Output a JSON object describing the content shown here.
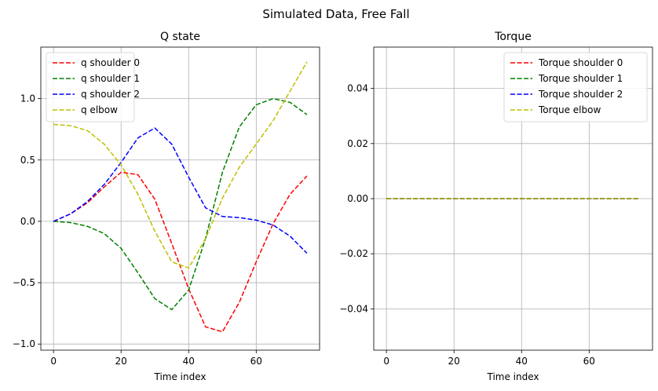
{
  "figure": {
    "title": "Simulated Data, Free Fall"
  },
  "chart_data": [
    {
      "type": "line",
      "title": "Q state",
      "xlabel": "Time index",
      "ylabel": "",
      "xlim": [
        -3.75,
        78.75
      ],
      "ylim": [
        -1.05,
        1.42
      ],
      "xticks": [
        0,
        20,
        40,
        60
      ],
      "yticks": [
        -1.0,
        -0.5,
        0.0,
        0.5,
        1.0
      ],
      "ytick_labels": [
        "−1.0",
        "−0.5",
        "0.0",
        "0.5",
        "1.0"
      ],
      "grid": true,
      "legend_position": "upper-left",
      "x": [
        0,
        5,
        10,
        15,
        20,
        25,
        30,
        35,
        40,
        45,
        50,
        55,
        60,
        65,
        70,
        75
      ],
      "series": [
        {
          "name": "q shoulder  0",
          "color": "#ff0000",
          "style": "dashed",
          "values": [
            0.0,
            0.06,
            0.15,
            0.28,
            0.4,
            0.38,
            0.18,
            -0.18,
            -0.55,
            -0.86,
            -0.9,
            -0.66,
            -0.33,
            -0.02,
            0.22,
            0.37
          ]
        },
        {
          "name": "q shoulder  1",
          "color": "#008000",
          "style": "dashed",
          "values": [
            0.0,
            -0.01,
            -0.04,
            -0.1,
            -0.22,
            -0.42,
            -0.63,
            -0.72,
            -0.56,
            -0.14,
            0.4,
            0.77,
            0.95,
            1.0,
            0.97,
            0.87
          ]
        },
        {
          "name": "q shoulder  2",
          "color": "#0000ff",
          "style": "dashed",
          "values": [
            0.0,
            0.06,
            0.16,
            0.3,
            0.48,
            0.68,
            0.76,
            0.63,
            0.36,
            0.11,
            0.04,
            0.03,
            0.01,
            -0.03,
            -0.12,
            -0.26
          ]
        },
        {
          "name": "q elbow",
          "color": "#bfbf00",
          "style": "dashed",
          "values": [
            0.79,
            0.78,
            0.74,
            0.63,
            0.46,
            0.22,
            -0.08,
            -0.33,
            -0.38,
            -0.14,
            0.19,
            0.44,
            0.63,
            0.82,
            1.06,
            1.3
          ]
        }
      ]
    },
    {
      "type": "line",
      "title": "Torque",
      "xlabel": "Time index",
      "ylabel": "",
      "xlim": [
        -3.75,
        78.75
      ],
      "ylim": [
        -0.055,
        0.055
      ],
      "xticks": [
        0,
        20,
        40,
        60
      ],
      "yticks": [
        -0.04,
        -0.02,
        0.0,
        0.02,
        0.04
      ],
      "ytick_labels": [
        "−0.04",
        "−0.02",
        "0.00",
        "0.02",
        "0.04"
      ],
      "grid": true,
      "legend_position": "upper-right",
      "x": [
        0,
        75
      ],
      "series": [
        {
          "name": "Torque shoulder  0",
          "color": "#ff0000",
          "style": "dashed",
          "values": [
            0,
            0
          ]
        },
        {
          "name": "Torque shoulder  1",
          "color": "#008000",
          "style": "dashed",
          "values": [
            0,
            0
          ]
        },
        {
          "name": "Torque shoulder  2",
          "color": "#0000ff",
          "style": "dashed",
          "values": [
            0,
            0
          ]
        },
        {
          "name": "Torque elbow",
          "color": "#bfbf00",
          "style": "dashed",
          "values": [
            0,
            0
          ]
        }
      ]
    }
  ]
}
